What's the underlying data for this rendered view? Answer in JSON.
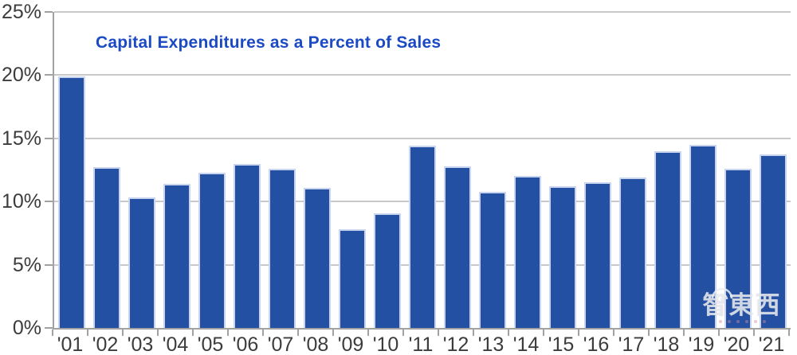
{
  "watermark": {
    "text": "智東西"
  },
  "chart_data": {
    "type": "bar",
    "title": "Capital Expenditures as a Percent of Sales",
    "categories": [
      "'01",
      "'02",
      "'03",
      "'04",
      "'05",
      "'06",
      "'07",
      "'08",
      "'09",
      "'10",
      "'11",
      "'12",
      "'13",
      "'14",
      "'15",
      "'16",
      "'17",
      "'18",
      "'19",
      "'20",
      "'21"
    ],
    "values": [
      19.9,
      12.7,
      10.3,
      11.4,
      12.3,
      13.0,
      12.6,
      11.1,
      7.8,
      9.1,
      14.4,
      12.8,
      10.8,
      12.0,
      11.2,
      11.5,
      11.9,
      14.0,
      14.5,
      12.6,
      13.7
    ],
    "xlabel": "",
    "ylabel": "",
    "ylim": [
      0,
      25
    ],
    "yticks": [
      0,
      5,
      10,
      15,
      20,
      25
    ],
    "ytick_labels": [
      "0%",
      "5%",
      "10%",
      "15%",
      "20%",
      "25%"
    ],
    "grid": true,
    "legend": false,
    "bar_color": "#2450a4",
    "bar_border_color": "#c9d4ee",
    "title_color": "#1b4ac4",
    "axis_color": "#a2a2a2",
    "gridline_color": "#c9c9c9",
    "tick_label_color": "#3c3c3c"
  }
}
